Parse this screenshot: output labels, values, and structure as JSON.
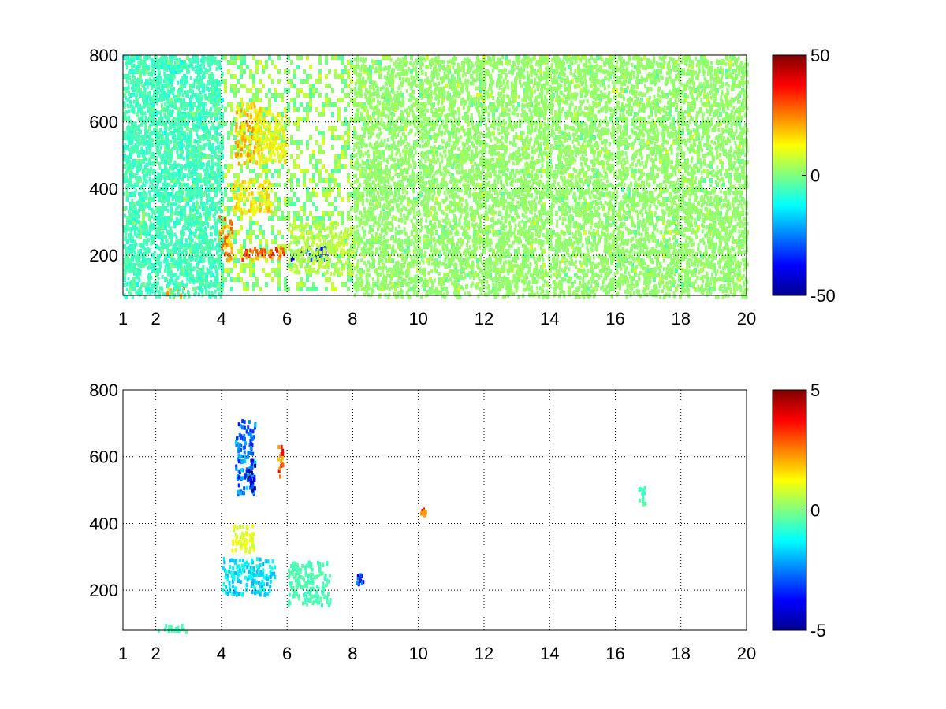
{
  "chart_data": [
    {
      "type": "heatmap",
      "title": "",
      "xlabel": "",
      "ylabel": "",
      "xlim": [
        1,
        20
      ],
      "ylim": [
        80,
        800
      ],
      "xticks": [
        1,
        2,
        4,
        6,
        8,
        10,
        12,
        14,
        16,
        18,
        20
      ],
      "yticks": [
        200,
        400,
        600,
        800
      ],
      "grid": true,
      "colormap": "jet",
      "colorbar": {
        "range": [
          -50,
          50
        ],
        "ticks": [
          -50,
          0,
          50
        ]
      },
      "blobs": [
        {
          "x": [
            2.3,
            2.9
          ],
          "y": [
            80,
            110
          ],
          "value": 20
        },
        {
          "x": [
            3.9,
            4.3
          ],
          "y": [
            190,
            320
          ],
          "value": 22
        },
        {
          "x": [
            4.4,
            5.2
          ],
          "y": [
            480,
            660
          ],
          "value": 18
        },
        {
          "x": [
            4.3,
            5.5
          ],
          "y": [
            330,
            430
          ],
          "value": 14
        },
        {
          "x": [
            4.6,
            5.9
          ],
          "y": [
            190,
            230
          ],
          "value": 26
        },
        {
          "x": [
            6.1,
            7.2
          ],
          "y": [
            190,
            230
          ],
          "value": -35
        },
        {
          "x": [
            5.0,
            6.0
          ],
          "y": [
            480,
            640
          ],
          "value": 12
        },
        {
          "x": [
            6.0,
            8.0
          ],
          "y": [
            150,
            300
          ],
          "value": 6
        },
        {
          "x": [
            1.0,
            4.0
          ],
          "y": [
            80,
            800
          ],
          "value": -6
        },
        {
          "x": [
            8.0,
            20.0
          ],
          "y": [
            80,
            800
          ],
          "value": 2
        }
      ]
    },
    {
      "type": "heatmap",
      "title": "",
      "xlabel": "",
      "ylabel": "",
      "xlim": [
        1,
        20
      ],
      "ylim": [
        80,
        800
      ],
      "xticks": [
        1,
        2,
        4,
        6,
        8,
        10,
        12,
        14,
        16,
        18,
        20
      ],
      "yticks": [
        200,
        400,
        600,
        800
      ],
      "grid": true,
      "colormap": "jet",
      "colorbar": {
        "range": [
          -5,
          5
        ],
        "ticks": [
          -5,
          0,
          5
        ]
      },
      "blobs": [
        {
          "x": [
            4.4,
            5.0
          ],
          "y": [
            490,
            720
          ],
          "value": -2.5
        },
        {
          "x": [
            4.8,
            5.0
          ],
          "y": [
            500,
            600
          ],
          "value": -4
        },
        {
          "x": [
            5.7,
            5.85
          ],
          "y": [
            540,
            640
          ],
          "value": 3
        },
        {
          "x": [
            4.0,
            5.6
          ],
          "y": [
            190,
            300
          ],
          "value": -1.5
        },
        {
          "x": [
            4.3,
            5.0
          ],
          "y": [
            320,
            400
          ],
          "value": 1
        },
        {
          "x": [
            6.0,
            7.3
          ],
          "y": [
            160,
            290
          ],
          "value": -0.5
        },
        {
          "x": [
            2.0,
            2.9
          ],
          "y": [
            80,
            100
          ],
          "value": -0.5
        },
        {
          "x": [
            8.1,
            8.3
          ],
          "y": [
            220,
            260
          ],
          "value": -3.5
        },
        {
          "x": [
            10.05,
            10.2
          ],
          "y": [
            430,
            450
          ],
          "value": 3
        },
        {
          "x": [
            16.7,
            16.9
          ],
          "y": [
            460,
            520
          ],
          "value": -0.5
        }
      ]
    }
  ]
}
